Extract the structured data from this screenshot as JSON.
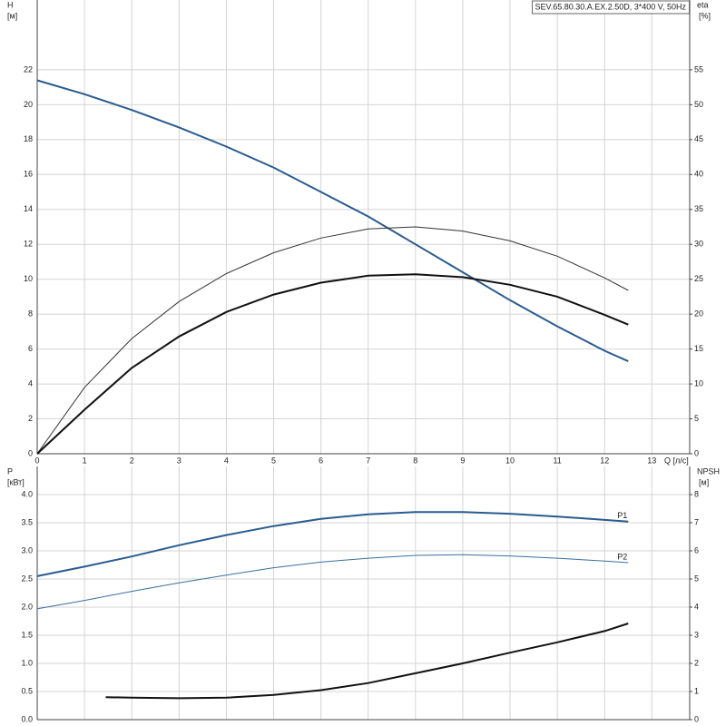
{
  "chart_data": [
    {
      "type": "line",
      "title": "SEV.65.80.30.A.EX.2.50D, 3*400 V, 50Hz",
      "x_label": "Q [л/с]",
      "y_label": "H",
      "y_unit": "[м]",
      "y2_label": "eta",
      "y2_unit": "[%]",
      "xlim": [
        0,
        13.8
      ],
      "xticks": [
        0,
        1,
        2,
        3,
        4,
        5,
        6,
        7,
        8,
        9,
        10,
        11,
        12,
        13
      ],
      "ylim": [
        0,
        26
      ],
      "yticks": [
        0,
        2,
        4,
        6,
        8,
        10,
        12,
        14,
        16,
        18,
        20,
        22
      ],
      "y2lim": [
        0,
        65
      ],
      "y2ticks": [
        0,
        5,
        10,
        15,
        20,
        25,
        30,
        35,
        40,
        45,
        50,
        55
      ],
      "grid": true,
      "series": [
        {
          "color": "#2a5b8f",
          "width": 2,
          "axis": "y",
          "x": [
            0,
            1,
            2,
            3,
            4,
            5,
            6,
            7,
            8,
            9,
            10,
            11,
            12,
            12.5
          ],
          "values": [
            21.4,
            20.6,
            19.7,
            18.7,
            17.6,
            16.4,
            15.0,
            13.6,
            12.0,
            10.4,
            8.8,
            7.3,
            5.9,
            5.3
          ]
        },
        {
          "color": "#333333",
          "width": 1,
          "axis": "y2",
          "x": [
            0,
            1,
            2,
            3,
            4,
            5,
            6,
            7,
            8,
            9,
            10,
            11,
            12,
            12.5
          ],
          "values": [
            0,
            9.5,
            16.5,
            21.8,
            25.8,
            28.8,
            30.9,
            32.2,
            32.5,
            31.9,
            30.5,
            28.3,
            25.2,
            23.4
          ]
        },
        {
          "color": "#111111",
          "width": 2,
          "axis": "y2",
          "x": [
            0,
            1,
            2,
            3,
            4,
            5,
            6,
            7,
            8,
            9,
            10,
            11,
            12,
            12.5
          ],
          "values": [
            0,
            6.3,
            12.3,
            16.8,
            20.3,
            22.8,
            24.5,
            25.5,
            25.7,
            25.3,
            24.2,
            22.5,
            19.9,
            18.5
          ]
        }
      ]
    },
    {
      "type": "line",
      "y_label": "P",
      "y_unit": "[кВт]",
      "y2_label": "NPSH",
      "y2_unit": "[м]",
      "xlim": [
        0,
        13.8
      ],
      "ylim": [
        0,
        4.5
      ],
      "yticks": [
        {
          "value": 0,
          "label": "0.0"
        },
        0.5,
        {
          "value": 1,
          "label": "1.0"
        },
        1.5,
        {
          "value": 2,
          "label": "2.0"
        },
        2.5,
        {
          "value": 3,
          "label": "3.0"
        },
        3.5,
        {
          "value": 4,
          "label": "4.0"
        }
      ],
      "y2lim": [
        0,
        9
      ],
      "y2ticks": [
        0,
        1,
        2,
        3,
        4,
        5,
        6,
        7,
        8
      ],
      "grid": true,
      "series": [
        {
          "name": "P1",
          "color": "#2a5b8f",
          "width": 2,
          "axis": "y",
          "x": [
            0,
            1,
            2,
            3,
            4,
            5,
            6,
            7,
            8,
            9,
            10,
            11,
            12,
            12.5
          ],
          "values": [
            2.55,
            2.72,
            2.9,
            3.1,
            3.28,
            3.44,
            3.57,
            3.65,
            3.69,
            3.69,
            3.66,
            3.61,
            3.55,
            3.52
          ]
        },
        {
          "name": "P2",
          "color": "#3a6f9f",
          "width": 1,
          "axis": "y",
          "x": [
            0,
            1,
            2,
            3,
            4,
            5,
            6,
            7,
            8,
            9,
            10,
            11,
            12,
            12.5
          ],
          "values": [
            1.97,
            2.12,
            2.28,
            2.43,
            2.57,
            2.7,
            2.8,
            2.87,
            2.92,
            2.93,
            2.91,
            2.87,
            2.82,
            2.79
          ]
        },
        {
          "color": "#111111",
          "width": 2,
          "axis": "y2",
          "x": [
            1.45,
            2,
            3,
            4,
            5,
            6,
            7,
            8,
            9,
            10,
            11,
            12,
            12.5
          ],
          "values": [
            0.8,
            0.78,
            0.76,
            0.78,
            0.88,
            1.05,
            1.3,
            1.65,
            2.0,
            2.38,
            2.75,
            3.15,
            3.42
          ]
        }
      ]
    }
  ]
}
